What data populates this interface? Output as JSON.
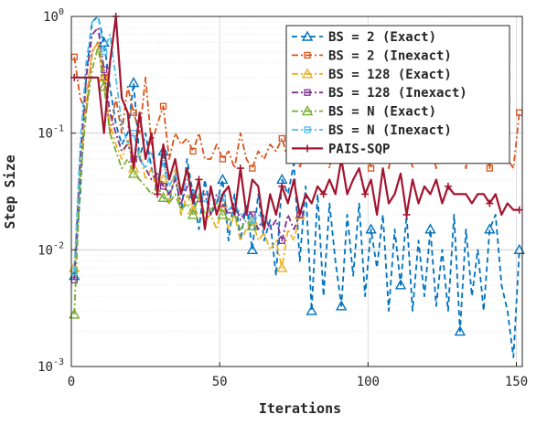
{
  "chart_data": {
    "type": "line",
    "title": "",
    "xlabel": "Iterations",
    "ylabel": "Step Size",
    "xlim": [
      0,
      152
    ],
    "ylim": [
      0.001,
      1
    ],
    "yscale": "log",
    "grid": true,
    "legend_position": "top-right",
    "x_ticks": [
      {
        "value": 0,
        "label": "0"
      },
      {
        "value": 50,
        "label": "50"
      },
      {
        "value": 100,
        "label": "100"
      },
      {
        "value": 150,
        "label": "150"
      }
    ],
    "y_ticks": [
      {
        "value": 0.001,
        "base": "10",
        "exp": "-3"
      },
      {
        "value": 0.01,
        "base": "10",
        "exp": "-2"
      },
      {
        "value": 0.1,
        "base": "10",
        "exp": "-1"
      },
      {
        "value": 1,
        "base": "10",
        "exp": "0"
      }
    ],
    "series": [
      {
        "name": "BS = 2 (Exact)",
        "color": "#0072BD",
        "dash": "dashed",
        "marker": "triangle",
        "x": [
          1,
          3,
          5,
          7,
          9,
          11,
          13,
          15,
          17,
          19,
          21,
          23,
          25,
          27,
          29,
          31,
          33,
          35,
          37,
          39,
          41,
          43,
          45,
          47,
          49,
          51,
          53,
          55,
          57,
          59,
          61,
          63,
          65,
          67,
          69,
          71,
          73,
          75,
          77,
          79,
          81,
          83,
          85,
          87,
          89,
          91,
          93,
          95,
          97,
          99,
          101,
          103,
          105,
          107,
          109,
          111,
          113,
          115,
          117,
          119,
          121,
          123,
          125,
          127,
          129,
          131,
          133,
          135,
          137,
          139,
          141,
          143,
          145,
          147,
          149,
          151
        ],
        "y": [
          0.006,
          0.03,
          0.3,
          0.9,
          1.0,
          0.6,
          0.25,
          0.12,
          0.08,
          0.1,
          0.27,
          0.06,
          0.1,
          0.05,
          0.03,
          0.07,
          0.025,
          0.045,
          0.02,
          0.06,
          0.03,
          0.015,
          0.04,
          0.02,
          0.025,
          0.04,
          0.012,
          0.03,
          0.012,
          0.025,
          0.01,
          0.03,
          0.012,
          0.018,
          0.006,
          0.04,
          0.03,
          0.055,
          0.008,
          0.035,
          0.003,
          0.03,
          0.004,
          0.025,
          0.008,
          0.0033,
          0.02,
          0.006,
          0.025,
          0.004,
          0.015,
          0.007,
          0.02,
          0.003,
          0.015,
          0.005,
          0.02,
          0.003,
          0.012,
          0.004,
          0.015,
          0.0033,
          0.01,
          0.003,
          0.02,
          0.002,
          0.015,
          0.004,
          0.01,
          0.003,
          0.015,
          0.02,
          0.005,
          0.003,
          0.0012,
          0.01
        ]
      },
      {
        "name": "BS = 2 (Inexact)",
        "color": "#D95319",
        "dash": "dashdot",
        "marker": "square",
        "x": [
          1,
          3,
          5,
          7,
          9,
          11,
          13,
          15,
          17,
          19,
          21,
          23,
          25,
          27,
          29,
          31,
          33,
          35,
          37,
          39,
          41,
          43,
          45,
          47,
          49,
          51,
          53,
          55,
          57,
          59,
          61,
          63,
          65,
          67,
          69,
          71,
          73,
          75,
          77,
          79,
          81,
          83,
          85,
          87,
          89,
          91,
          93,
          95,
          97,
          99,
          101,
          103,
          105,
          107,
          109,
          111,
          113,
          115,
          117,
          119,
          121,
          123,
          125,
          127,
          129,
          131,
          133,
          135,
          137,
          139,
          141,
          143,
          145,
          147,
          149,
          151
        ],
        "y": [
          0.45,
          0.2,
          0.15,
          0.5,
          0.6,
          0.3,
          0.1,
          0.2,
          0.1,
          0.25,
          0.15,
          0.1,
          0.3,
          0.08,
          0.12,
          0.17,
          0.06,
          0.1,
          0.08,
          0.09,
          0.07,
          0.1,
          0.06,
          0.06,
          0.08,
          0.06,
          0.07,
          0.05,
          0.1,
          0.06,
          0.05,
          0.07,
          0.06,
          0.08,
          0.07,
          0.09,
          0.06,
          0.1,
          0.05,
          0.08,
          0.06,
          0.07,
          0.09,
          0.05,
          0.1,
          0.06,
          0.07,
          0.09,
          0.06,
          0.08,
          0.05,
          0.07,
          0.09,
          0.05,
          0.08,
          0.06,
          0.1,
          0.05,
          0.09,
          0.06,
          0.08,
          0.05,
          0.07,
          0.09,
          0.06,
          0.08,
          0.05,
          0.09,
          0.06,
          0.07,
          0.05,
          0.1,
          0.08,
          0.06,
          0.05,
          0.15
        ]
      },
      {
        "name": "BS = 128 (Exact)",
        "color": "#EDB120",
        "dash": "dashdot",
        "marker": "triangle",
        "x": [
          1,
          3,
          5,
          7,
          9,
          11,
          13,
          15,
          17,
          19,
          21,
          23,
          25,
          27,
          29,
          31,
          33,
          35,
          37,
          39,
          41,
          43,
          45,
          47,
          49,
          51,
          53,
          55,
          57,
          59,
          61,
          63,
          65,
          67,
          69,
          71,
          73,
          75,
          77
        ],
        "y": [
          0.007,
          0.05,
          0.2,
          0.5,
          0.6,
          0.3,
          0.12,
          0.08,
          0.06,
          0.09,
          0.05,
          0.07,
          0.04,
          0.05,
          0.03,
          0.04,
          0.025,
          0.05,
          0.02,
          0.03,
          0.022,
          0.028,
          0.018,
          0.02,
          0.015,
          0.025,
          0.015,
          0.02,
          0.012,
          0.015,
          0.018,
          0.012,
          0.014,
          0.01,
          0.012,
          0.007,
          0.015,
          0.012,
          0.02
        ]
      },
      {
        "name": "BS = 128 (Inexact)",
        "color": "#7E2F8E",
        "dash": "dashdot",
        "marker": "square",
        "x": [
          1,
          3,
          5,
          7,
          9,
          11,
          13,
          15,
          17,
          19,
          21,
          23,
          25,
          27,
          29,
          31,
          33,
          35,
          37,
          39,
          41,
          43,
          45,
          47,
          49,
          51,
          53,
          55,
          57,
          59,
          61,
          63,
          65,
          67,
          69,
          71,
          73,
          75,
          77
        ],
        "y": [
          0.0055,
          0.06,
          0.3,
          0.7,
          0.8,
          0.35,
          0.15,
          0.1,
          0.07,
          0.08,
          0.06,
          0.06,
          0.05,
          0.04,
          0.045,
          0.035,
          0.03,
          0.04,
          0.025,
          0.035,
          0.03,
          0.025,
          0.03,
          0.02,
          0.03,
          0.025,
          0.02,
          0.025,
          0.018,
          0.022,
          0.02,
          0.015,
          0.02,
          0.015,
          0.018,
          0.012,
          0.02,
          0.015,
          0.02
        ]
      },
      {
        "name": "BS = N (Exact)",
        "color": "#77AC30",
        "dash": "dashdot",
        "marker": "triangle",
        "x": [
          1,
          3,
          5,
          7,
          9,
          11,
          13,
          15,
          17,
          19,
          21,
          23,
          25,
          27,
          29,
          31,
          33,
          35,
          37,
          39,
          41,
          43,
          45,
          47,
          49,
          51,
          53,
          55,
          57,
          59,
          61
        ],
        "y": [
          0.0028,
          0.04,
          0.15,
          0.35,
          0.55,
          0.25,
          0.1,
          0.07,
          0.05,
          0.06,
          0.045,
          0.04,
          0.035,
          0.03,
          0.035,
          0.028,
          0.025,
          0.03,
          0.022,
          0.025,
          0.02,
          0.03,
          0.02,
          0.022,
          0.025,
          0.02,
          0.018,
          0.02,
          0.015,
          0.018,
          0.016
        ]
      },
      {
        "name": "BS = N (Inexact)",
        "color": "#4DBEEE",
        "dash": "dashdot",
        "marker": "square",
        "x": [
          1,
          3,
          5,
          7,
          9,
          11,
          13,
          15,
          17,
          19,
          21,
          23,
          25,
          27,
          29,
          31,
          33,
          35,
          37,
          39,
          41,
          43,
          45,
          47,
          49,
          51,
          53,
          55,
          57,
          59,
          61,
          63,
          65
        ],
        "y": [
          0.0065,
          0.08,
          0.4,
          0.9,
          1.0,
          0.5,
          0.7,
          0.3,
          0.12,
          0.08,
          0.1,
          0.06,
          0.05,
          0.07,
          0.04,
          0.055,
          0.035,
          0.045,
          0.03,
          0.04,
          0.03,
          0.035,
          0.025,
          0.03,
          0.025,
          0.028,
          0.022,
          0.025,
          0.02,
          0.022,
          0.018,
          0.02,
          0.018
        ]
      },
      {
        "name": "PAIS-SQP",
        "color": "#A2142F",
        "dash": "solid",
        "marker": "plus",
        "x": [
          1,
          3,
          5,
          7,
          9,
          11,
          13,
          15,
          17,
          19,
          21,
          23,
          25,
          27,
          29,
          31,
          33,
          35,
          37,
          39,
          41,
          43,
          45,
          47,
          49,
          51,
          53,
          55,
          57,
          59,
          61,
          63,
          65,
          67,
          69,
          71,
          73,
          75,
          77,
          79,
          81,
          83,
          85,
          87,
          89,
          91,
          93,
          95,
          97,
          99,
          101,
          103,
          105,
          107,
          109,
          111,
          113,
          115,
          117,
          119,
          121,
          123,
          125,
          127,
          129,
          131,
          133,
          135,
          137,
          139,
          141,
          143,
          145,
          147,
          149,
          151
        ],
        "y": [
          0.3,
          0.3,
          0.3,
          0.3,
          0.3,
          0.1,
          0.4,
          1.0,
          0.2,
          0.15,
          0.05,
          0.15,
          0.06,
          0.1,
          0.03,
          0.08,
          0.04,
          0.06,
          0.03,
          0.05,
          0.025,
          0.04,
          0.015,
          0.035,
          0.02,
          0.03,
          0.035,
          0.02,
          0.05,
          0.02,
          0.04,
          0.035,
          0.015,
          0.03,
          0.02,
          0.035,
          0.025,
          0.04,
          0.02,
          0.03,
          0.025,
          0.035,
          0.03,
          0.04,
          0.03,
          0.06,
          0.03,
          0.04,
          0.05,
          0.03,
          0.04,
          0.02,
          0.05,
          0.025,
          0.03,
          0.045,
          0.02,
          0.04,
          0.025,
          0.035,
          0.03,
          0.04,
          0.025,
          0.035,
          0.03,
          0.03,
          0.03,
          0.025,
          0.03,
          0.03,
          0.025,
          0.03,
          0.02,
          0.025,
          0.022,
          0.022
        ]
      }
    ]
  }
}
